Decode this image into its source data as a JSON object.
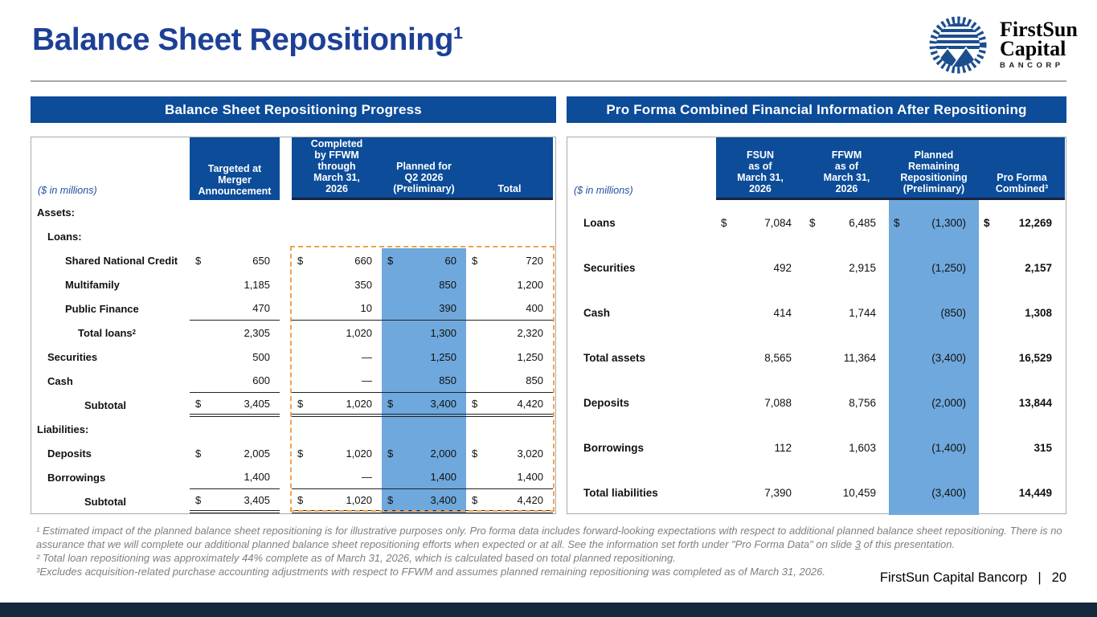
{
  "slide": {
    "title": "Balance Sheet Repositioning",
    "title_superscript": "1",
    "footer_text": "FirstSun Capital Bancorp",
    "footer_divider": "|",
    "page_number": "20"
  },
  "logo": {
    "icon": "sun-mountains-icon",
    "line1": "FirstSun",
    "line2": "Capital",
    "line3": "BANCORP"
  },
  "colors": {
    "header_bar_blue": "#0C4C99",
    "title_blue": "#1D4096",
    "highlight_blue": "#6FA8DC",
    "orange_dash_border": "#F0A24E",
    "footnote_gray": "#7F7F7F",
    "bottom_bar_navy": "#14293D"
  },
  "left_table": {
    "section_title": "Balance Sheet Repositioning Progress",
    "units_label": "($ in millions)",
    "columns": {
      "targeted": "Targeted at\nMerger\nAnnouncement",
      "completed": "Completed\nby FFWM\nthrough\nMarch 31,\n2026",
      "planned": "Planned for\nQ2 2026\n(Preliminary)",
      "total": "Total"
    },
    "rows": [
      {
        "label": "Assets:",
        "type": "section",
        "indent": 0
      },
      {
        "label": "Loans:",
        "type": "section",
        "indent": 1
      },
      {
        "label": "Shared National Credit",
        "indent": 2,
        "dollar": true,
        "values": [
          "650",
          "660",
          "60",
          "720"
        ]
      },
      {
        "label": "Multifamily",
        "indent": 2,
        "values": [
          "1,185",
          "350",
          "850",
          "1,200"
        ]
      },
      {
        "label": "Public Finance",
        "indent": 2,
        "underline": "single",
        "values": [
          "470",
          "10",
          "390",
          "400"
        ]
      },
      {
        "label": "Total loans",
        "label_superscript": "2",
        "indent": 3,
        "values": [
          "2,305",
          "1,020",
          "1,300",
          "2,320"
        ]
      },
      {
        "label": "Securities",
        "indent": 1,
        "values": [
          "500",
          "—",
          "1,250",
          "1,250"
        ]
      },
      {
        "label": "Cash",
        "indent": 1,
        "underline": "single",
        "values": [
          "600",
          "—",
          "850",
          "850"
        ]
      },
      {
        "label": "Subtotal",
        "indent": 4,
        "dollar": true,
        "underline": "double",
        "values": [
          "3,405",
          "1,020",
          "3,400",
          "4,420"
        ]
      },
      {
        "label": "Liabilities:",
        "type": "section",
        "indent": 0
      },
      {
        "label": "Deposits",
        "indent": 1,
        "dollar": true,
        "values": [
          "2,005",
          "1,020",
          "2,000",
          "3,020"
        ]
      },
      {
        "label": "Borrowings",
        "indent": 1,
        "underline": "single",
        "values": [
          "1,400",
          "—",
          "1,400",
          "1,400"
        ]
      },
      {
        "label": "Subtotal",
        "indent": 4,
        "dollar": true,
        "underline": "double",
        "values": [
          "3,405",
          "1,020",
          "3,400",
          "4,420"
        ]
      }
    ]
  },
  "right_table": {
    "section_title": "Pro Forma Combined Financial Information After Repositioning",
    "units_label": "($ in millions)",
    "columns": {
      "fsun": "FSUN\nas of\nMarch 31,\n2026",
      "ffwm": "FFWM\nas of\nMarch 31,\n2026",
      "planned_remaining": "Planned\nRemaining\nRepositioning\n(Preliminary)",
      "pro_forma": "Pro Forma\nCombined³"
    },
    "rows": [
      {
        "label": "Loans",
        "dollar": true,
        "values": [
          "7,084",
          "6,485",
          "(1,300)",
          "12,269"
        ]
      },
      {
        "label": "Securities",
        "values": [
          "492",
          "2,915",
          "(1,250)",
          "2,157"
        ]
      },
      {
        "label": "Cash",
        "values": [
          "414",
          "1,744",
          "(850)",
          "1,308"
        ]
      },
      {
        "label": "Total assets",
        "values": [
          "8,565",
          "11,364",
          "(3,400)",
          "16,529"
        ]
      },
      {
        "label": "Deposits",
        "values": [
          "7,088",
          "8,756",
          "(2,000)",
          "13,844"
        ]
      },
      {
        "label": "Borrowings",
        "values": [
          "112",
          "1,603",
          "(1,400)",
          "315"
        ]
      },
      {
        "label": "Total liabilities",
        "values": [
          "7,390",
          "10,459",
          "(3,400)",
          "14,449"
        ]
      }
    ]
  },
  "footnotes": {
    "note1_part1": "¹ Estimated impact of the planned balance sheet repositioning is for illustrative purposes only. Pro forma data includes forward-looking expectations with respect to additional planned balance sheet repositioning. There is no assurance that we will complete our additional planned balance sheet repositioning efforts when expected or at all. See the information set forth under \"Pro Forma Data\" on slide ",
    "note1_link": "3",
    "note1_part2": " of this presentation.",
    "note2": "² Total loan repositioning was approximately 44% complete as of March 31, 2026, which is calculated based on total planned repositioning.",
    "note3": "³Excludes acquisition-related purchase accounting adjustments with respect to FFWM and assumes planned remaining repositioning was completed as of March 31, 2026."
  }
}
